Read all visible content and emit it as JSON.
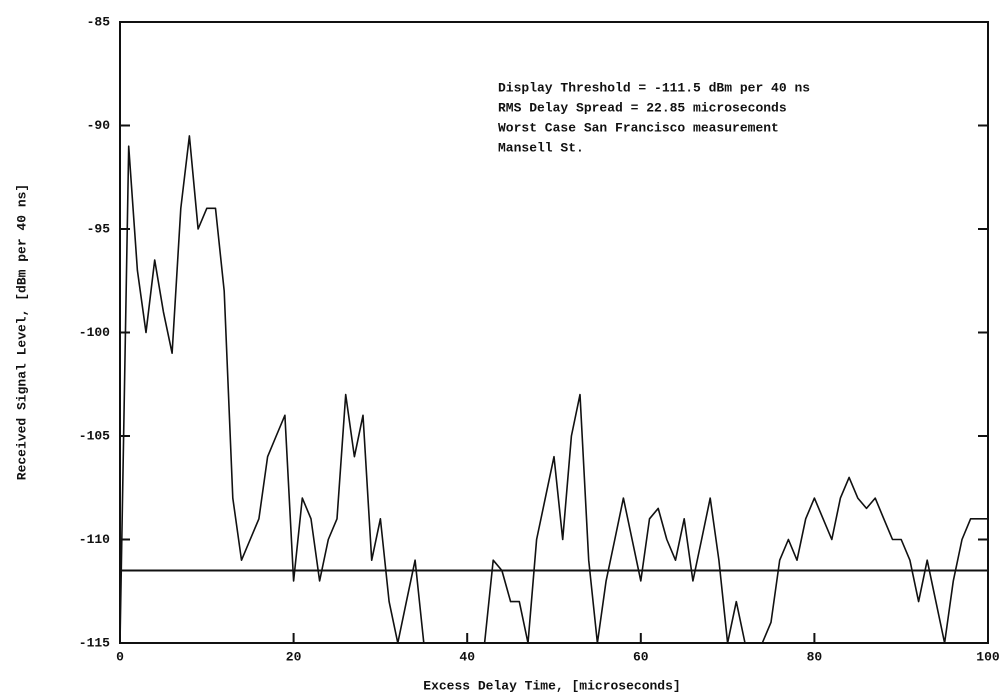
{
  "chart_data": {
    "type": "line",
    "x_label": "Excess Delay Time,  [microseconds]",
    "y_label": "Received Signal Level,  [dBm per 40 ns]",
    "annotations": [
      "Display Threshold = -111.5 dBm per 40 ns",
      "RMS Delay Spread  = 22.85 microseconds",
      "Worst Case San Francisco measurement",
      "Mansell St."
    ],
    "threshold": -111.5,
    "color": "#111111",
    "xlim": [
      0,
      100
    ],
    "ylim": [
      -115,
      -85
    ],
    "xticks": [
      0,
      20,
      40,
      60,
      80,
      100
    ],
    "yticks": [
      -85,
      -90,
      -95,
      -100,
      -105,
      -110,
      -115
    ],
    "grid": false,
    "x": [
      0,
      1,
      2,
      3,
      4,
      5,
      6,
      7,
      8,
      9,
      10,
      11,
      12,
      13,
      14,
      15,
      16,
      17,
      18,
      19,
      20,
      21,
      22,
      23,
      24,
      25,
      26,
      27,
      28,
      29,
      30,
      31,
      32,
      33,
      34,
      35,
      36,
      37,
      38,
      39,
      40,
      41,
      42,
      43,
      44,
      45,
      46,
      47,
      48,
      49,
      50,
      51,
      52,
      53,
      54,
      55,
      56,
      57,
      58,
      59,
      60,
      61,
      62,
      63,
      64,
      65,
      66,
      67,
      68,
      69,
      70,
      71,
      72,
      73,
      74,
      75,
      76,
      77,
      78,
      79,
      80,
      81,
      82,
      83,
      84,
      85,
      86,
      87,
      88,
      89,
      90,
      91,
      92,
      93,
      94,
      95,
      96,
      97,
      98,
      99,
      100
    ],
    "values": [
      -115,
      -91,
      -97,
      -100,
      -96.5,
      -99,
      -101,
      -94,
      -90.5,
      -95,
      -94,
      -94,
      -98,
      -108,
      -111,
      -110,
      -109,
      -106,
      -105,
      -104,
      -112,
      -108,
      -109,
      -112,
      -110,
      -109,
      -103,
      -106,
      -104,
      -111,
      -109,
      -113,
      -115,
      -113,
      -111,
      -115,
      -115,
      -115,
      -115,
      -115,
      -115,
      -115,
      -115,
      -111,
      -111.5,
      -113,
      -113,
      -115,
      -110,
      -108,
      -106,
      -110,
      -105,
      -103,
      -111,
      -115,
      -112,
      -110,
      -108,
      -110,
      -112,
      -109,
      -108.5,
      -110,
      -111,
      -109,
      -112,
      -110,
      -108,
      -111,
      -115,
      -113,
      -115,
      -115,
      -115,
      -114,
      -111,
      -110,
      -111,
      -109,
      -108,
      -109,
      -110,
      -108,
      -107,
      -108,
      -108.5,
      -108,
      -109,
      -110,
      -110,
      -111,
      -113,
      -111,
      -113,
      -115,
      -112,
      -110,
      -109,
      -109,
      -109
    ]
  }
}
